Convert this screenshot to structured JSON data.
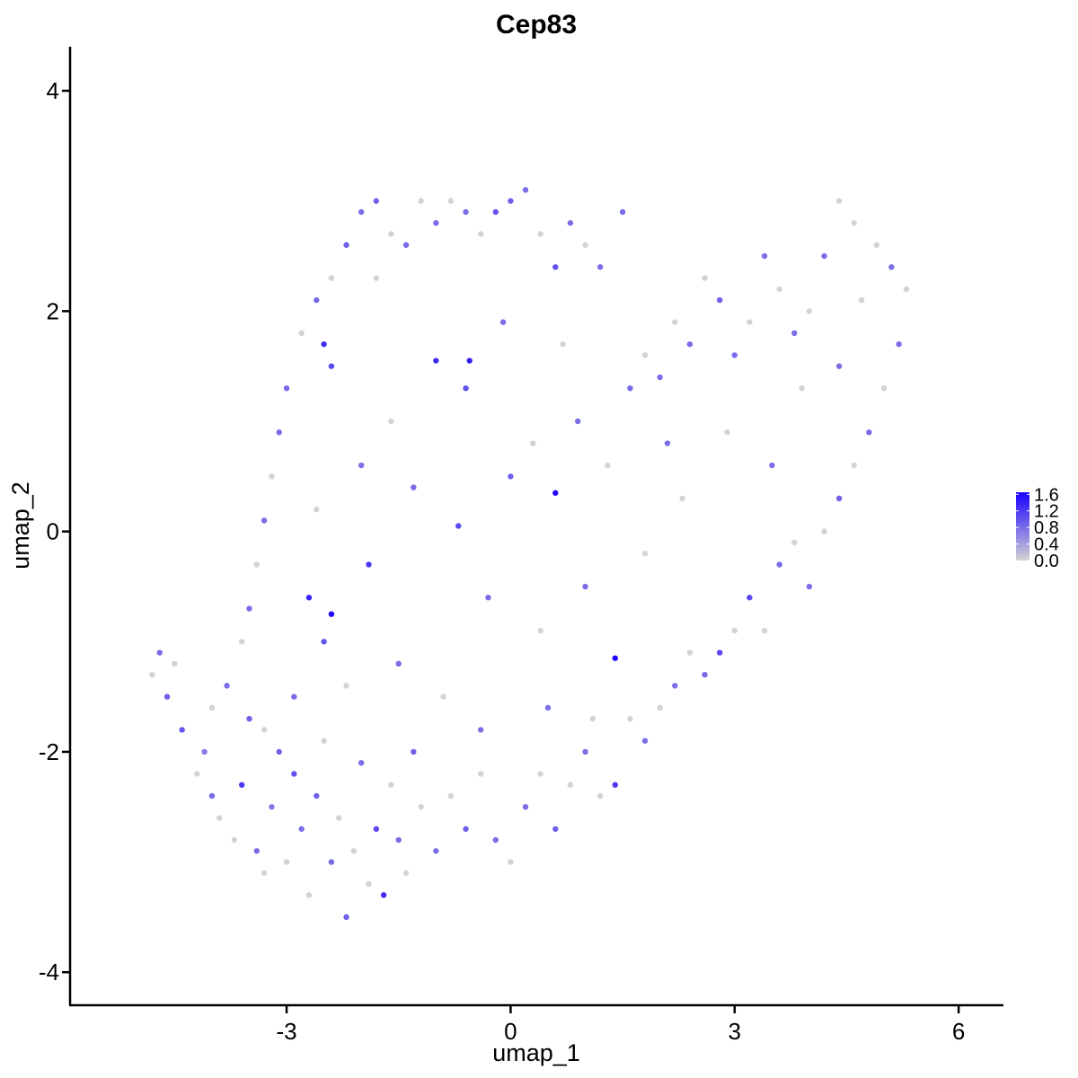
{
  "chart_data": {
    "type": "scatter",
    "title": "Cep83",
    "xlabel": "umap_1",
    "ylabel": "umap_2",
    "xlim": [
      -5.9,
      6.6
    ],
    "ylim": [
      -4.3,
      4.4
    ],
    "x_ticks": [
      {
        "value": -3,
        "label": "-3"
      },
      {
        "value": 0,
        "label": "0"
      },
      {
        "value": 3,
        "label": "3"
      },
      {
        "value": 6,
        "label": "6"
      }
    ],
    "y_ticks": [
      {
        "value": -4,
        "label": "-4"
      },
      {
        "value": -2,
        "label": "-2"
      },
      {
        "value": 0,
        "label": "0"
      },
      {
        "value": 2,
        "label": "2"
      },
      {
        "value": 4,
        "label": "4"
      }
    ],
    "grid": false,
    "colors": {
      "low": "#d3d3d3",
      "high": "#1a00ff"
    },
    "legend": {
      "position": "right",
      "min": 0,
      "max": 1.65,
      "ticks": [
        {
          "value": 0.0,
          "label": "0.0"
        },
        {
          "value": 0.4,
          "label": "0.4"
        },
        {
          "value": 0.8,
          "label": "0.8"
        },
        {
          "value": 1.2,
          "label": "1.2"
        },
        {
          "value": 1.6,
          "label": "1.6"
        }
      ]
    },
    "points": [
      {
        "x": -4.8,
        "y": -1.3,
        "v": 0
      },
      {
        "x": -4.7,
        "y": -1.1,
        "v": 0.8
      },
      {
        "x": -4.6,
        "y": -1.5,
        "v": 0.9
      },
      {
        "x": -4.5,
        "y": -1.2,
        "v": 0
      },
      {
        "x": -4.4,
        "y": -1.8,
        "v": 1.0
      },
      {
        "x": -4.2,
        "y": -2.2,
        "v": 0
      },
      {
        "x": -4.1,
        "y": -2.0,
        "v": 0.7
      },
      {
        "x": -4.0,
        "y": -1.6,
        "v": 0
      },
      {
        "x": -3.9,
        "y": -2.6,
        "v": 0
      },
      {
        "x": -3.8,
        "y": -1.4,
        "v": 0.8
      },
      {
        "x": -3.7,
        "y": -2.8,
        "v": 0
      },
      {
        "x": -3.6,
        "y": -2.3,
        "v": 1.2
      },
      {
        "x": -3.5,
        "y": -1.7,
        "v": 0.9
      },
      {
        "x": -3.4,
        "y": -2.9,
        "v": 0.8
      },
      {
        "x": -3.3,
        "y": -3.1,
        "v": 0
      },
      {
        "x": -3.2,
        "y": -2.5,
        "v": 0.7
      },
      {
        "x": -3.1,
        "y": -2.0,
        "v": 0.9
      },
      {
        "x": -3.0,
        "y": -3.0,
        "v": 0
      },
      {
        "x": -2.9,
        "y": -2.2,
        "v": 1.0
      },
      {
        "x": -2.8,
        "y": -2.7,
        "v": 0.8
      },
      {
        "x": -2.7,
        "y": -3.3,
        "v": 0
      },
      {
        "x": -2.6,
        "y": -2.4,
        "v": 0.9
      },
      {
        "x": -2.5,
        "y": -1.9,
        "v": 0
      },
      {
        "x": -2.4,
        "y": -3.0,
        "v": 0.8
      },
      {
        "x": -2.3,
        "y": -2.6,
        "v": 0
      },
      {
        "x": -2.2,
        "y": -3.5,
        "v": 0.9
      },
      {
        "x": -2.1,
        "y": -2.9,
        "v": 0
      },
      {
        "x": -2.0,
        "y": -2.1,
        "v": 0.8
      },
      {
        "x": -1.9,
        "y": -3.2,
        "v": 0
      },
      {
        "x": -1.8,
        "y": -2.7,
        "v": 1.1
      },
      {
        "x": -1.7,
        "y": -3.3,
        "v": 1.3
      },
      {
        "x": -1.6,
        "y": -2.3,
        "v": 0
      },
      {
        "x": -1.5,
        "y": -2.8,
        "v": 0.8
      },
      {
        "x": -1.4,
        "y": -3.1,
        "v": 0
      },
      {
        "x": -1.3,
        "y": -2.0,
        "v": 0.9
      },
      {
        "x": -1.2,
        "y": -2.5,
        "v": 0
      },
      {
        "x": -1.0,
        "y": -2.9,
        "v": 0.8
      },
      {
        "x": -0.8,
        "y": -2.4,
        "v": 0
      },
      {
        "x": -0.6,
        "y": -2.7,
        "v": 0.9
      },
      {
        "x": -0.4,
        "y": -2.2,
        "v": 0
      },
      {
        "x": -0.2,
        "y": -2.8,
        "v": 0.8
      },
      {
        "x": 0.0,
        "y": -3.0,
        "v": 0
      },
      {
        "x": 0.2,
        "y": -2.5,
        "v": 0.8
      },
      {
        "x": 0.4,
        "y": -2.2,
        "v": 0
      },
      {
        "x": 0.6,
        "y": -2.7,
        "v": 0.9
      },
      {
        "x": 0.8,
        "y": -2.3,
        "v": 0
      },
      {
        "x": 1.0,
        "y": -2.0,
        "v": 0.8
      },
      {
        "x": 1.2,
        "y": -2.4,
        "v": 0
      },
      {
        "x": 1.4,
        "y": -2.3,
        "v": 1.2
      },
      {
        "x": 1.6,
        "y": -1.7,
        "v": 0
      },
      {
        "x": 1.8,
        "y": -1.9,
        "v": 0.8
      },
      {
        "x": 2.0,
        "y": -1.6,
        "v": 0
      },
      {
        "x": 2.2,
        "y": -1.4,
        "v": 0.8
      },
      {
        "x": 2.4,
        "y": -1.1,
        "v": 0
      },
      {
        "x": 2.6,
        "y": -1.3,
        "v": 0.8
      },
      {
        "x": 2.8,
        "y": -1.1,
        "v": 1.1
      },
      {
        "x": 3.0,
        "y": -0.9,
        "v": 0
      },
      {
        "x": 3.2,
        "y": -0.6,
        "v": 1.1
      },
      {
        "x": 3.4,
        "y": -0.9,
        "v": 0
      },
      {
        "x": 3.6,
        "y": -0.3,
        "v": 0.8
      },
      {
        "x": 3.8,
        "y": -0.1,
        "v": 0
      },
      {
        "x": 4.0,
        "y": -0.5,
        "v": 0.8
      },
      {
        "x": 4.2,
        "y": 0.0,
        "v": 0
      },
      {
        "x": 4.4,
        "y": 0.3,
        "v": 0.9
      },
      {
        "x": 4.6,
        "y": 0.6,
        "v": 0
      },
      {
        "x": 4.8,
        "y": 0.9,
        "v": 0.8
      },
      {
        "x": 5.0,
        "y": 1.3,
        "v": 0
      },
      {
        "x": 5.2,
        "y": 1.7,
        "v": 0.8
      },
      {
        "x": 5.3,
        "y": 2.2,
        "v": 0
      },
      {
        "x": 5.1,
        "y": 2.4,
        "v": 0.8
      },
      {
        "x": 4.9,
        "y": 2.6,
        "v": 0
      },
      {
        "x": 4.6,
        "y": 2.8,
        "v": 0
      },
      {
        "x": 4.4,
        "y": 3.0,
        "v": 0
      },
      {
        "x": 4.2,
        "y": 2.5,
        "v": 0.8
      },
      {
        "x": 4.0,
        "y": 2.0,
        "v": 0
      },
      {
        "x": 3.8,
        "y": 1.8,
        "v": 0.8
      },
      {
        "x": 3.6,
        "y": 2.2,
        "v": 0
      },
      {
        "x": 3.4,
        "y": 2.5,
        "v": 0.8
      },
      {
        "x": 3.2,
        "y": 1.9,
        "v": 0
      },
      {
        "x": 3.0,
        "y": 1.6,
        "v": 0.8
      },
      {
        "x": 2.8,
        "y": 2.1,
        "v": 0.9
      },
      {
        "x": 2.6,
        "y": 2.3,
        "v": 0
      },
      {
        "x": 2.4,
        "y": 1.7,
        "v": 0.8
      },
      {
        "x": 2.2,
        "y": 1.9,
        "v": 0
      },
      {
        "x": 2.0,
        "y": 1.4,
        "v": 0.8
      },
      {
        "x": 1.8,
        "y": 1.6,
        "v": 0
      },
      {
        "x": 1.6,
        "y": 1.3,
        "v": 0.8
      },
      {
        "x": 1.5,
        "y": 2.9,
        "v": 0.8
      },
      {
        "x": 1.2,
        "y": 2.4,
        "v": 0.8
      },
      {
        "x": 1.0,
        "y": 2.6,
        "v": 0
      },
      {
        "x": 0.8,
        "y": 2.8,
        "v": 0.8
      },
      {
        "x": 0.6,
        "y": 2.4,
        "v": 1.0
      },
      {
        "x": 0.4,
        "y": 2.7,
        "v": 0
      },
      {
        "x": 0.2,
        "y": 3.1,
        "v": 0.8
      },
      {
        "x": 0.0,
        "y": 3.0,
        "v": 0.9
      },
      {
        "x": -0.2,
        "y": 2.9,
        "v": 1.0
      },
      {
        "x": -0.4,
        "y": 2.7,
        "v": 0
      },
      {
        "x": -0.6,
        "y": 2.9,
        "v": 0.8
      },
      {
        "x": -0.8,
        "y": 3.0,
        "v": 0
      },
      {
        "x": -1.0,
        "y": 2.8,
        "v": 0.8
      },
      {
        "x": -1.2,
        "y": 3.0,
        "v": 0
      },
      {
        "x": -1.4,
        "y": 2.6,
        "v": 0.8
      },
      {
        "x": -1.6,
        "y": 2.7,
        "v": 0
      },
      {
        "x": -1.8,
        "y": 3.0,
        "v": 0.9
      },
      {
        "x": -2.0,
        "y": 2.9,
        "v": 0.8
      },
      {
        "x": -2.2,
        "y": 2.6,
        "v": 0.9
      },
      {
        "x": -2.4,
        "y": 2.3,
        "v": 0
      },
      {
        "x": -2.6,
        "y": 2.1,
        "v": 0.8
      },
      {
        "x": -2.8,
        "y": 1.8,
        "v": 0
      },
      {
        "x": -3.0,
        "y": 1.3,
        "v": 0.8
      },
      {
        "x": -3.1,
        "y": 0.9,
        "v": 0.8
      },
      {
        "x": -3.2,
        "y": 0.5,
        "v": 0
      },
      {
        "x": -3.3,
        "y": 0.1,
        "v": 0.8
      },
      {
        "x": -3.4,
        "y": -0.3,
        "v": 0
      },
      {
        "x": -3.5,
        "y": -0.7,
        "v": 0.8
      },
      {
        "x": -3.6,
        "y": -1.0,
        "v": 0
      },
      {
        "x": -2.5,
        "y": 1.7,
        "v": 1.3
      },
      {
        "x": -2.4,
        "y": 1.5,
        "v": 1.1
      },
      {
        "x": -1.0,
        "y": 1.55,
        "v": 1.3
      },
      {
        "x": -0.55,
        "y": 1.55,
        "v": 1.4
      },
      {
        "x": -0.6,
        "y": 1.3,
        "v": 1.0
      },
      {
        "x": -2.7,
        "y": -0.6,
        "v": 1.4
      },
      {
        "x": -2.4,
        "y": -0.75,
        "v": 1.6
      },
      {
        "x": -2.5,
        "y": -1.0,
        "v": 1.0
      },
      {
        "x": 0.6,
        "y": 0.35,
        "v": 1.6
      },
      {
        "x": 1.4,
        "y": -1.15,
        "v": 1.6
      },
      {
        "x": -1.9,
        "y": -0.3,
        "v": 1.2
      },
      {
        "x": -0.7,
        "y": 0.05,
        "v": 1.1
      },
      {
        "x": 0.0,
        "y": 0.5,
        "v": 0.9
      },
      {
        "x": 0.3,
        "y": 0.8,
        "v": 0
      },
      {
        "x": 0.9,
        "y": 1.0,
        "v": 0.8
      },
      {
        "x": 1.3,
        "y": 0.6,
        "v": 0
      },
      {
        "x": -0.3,
        "y": -0.6,
        "v": 0.8
      },
      {
        "x": 0.4,
        "y": -0.9,
        "v": 0
      },
      {
        "x": 1.0,
        "y": -0.5,
        "v": 0.8
      },
      {
        "x": 1.8,
        "y": -0.2,
        "v": 0
      },
      {
        "x": 2.3,
        "y": 0.3,
        "v": 0
      },
      {
        "x": -1.3,
        "y": 0.4,
        "v": 0.8
      },
      {
        "x": -1.6,
        "y": 1.0,
        "v": 0
      },
      {
        "x": -2.0,
        "y": 0.6,
        "v": 0.8
      },
      {
        "x": -2.2,
        "y": -1.4,
        "v": 0
      },
      {
        "x": -1.5,
        "y": -1.2,
        "v": 0.8
      },
      {
        "x": -0.9,
        "y": -1.5,
        "v": 0
      },
      {
        "x": -0.4,
        "y": -1.8,
        "v": 0.8
      },
      {
        "x": 0.5,
        "y": -1.6,
        "v": 0.8
      },
      {
        "x": 1.1,
        "y": -1.7,
        "v": 0
      },
      {
        "x": 3.5,
        "y": 0.6,
        "v": 0.8
      },
      {
        "x": 3.9,
        "y": 1.3,
        "v": 0
      },
      {
        "x": 4.4,
        "y": 1.5,
        "v": 0.8
      },
      {
        "x": 4.7,
        "y": 2.1,
        "v": 0
      },
      {
        "x": 2.9,
        "y": 0.9,
        "v": 0
      },
      {
        "x": 2.1,
        "y": 0.8,
        "v": 0.8
      },
      {
        "x": -2.9,
        "y": -1.5,
        "v": 0.8
      },
      {
        "x": -3.3,
        "y": -1.8,
        "v": 0
      },
      {
        "x": -4.0,
        "y": -2.4,
        "v": 0.8
      },
      {
        "x": -2.6,
        "y": 0.2,
        "v": 0
      },
      {
        "x": -0.1,
        "y": 1.9,
        "v": 0.8
      },
      {
        "x": 0.7,
        "y": 1.7,
        "v": 0
      },
      {
        "x": -1.8,
        "y": 2.3,
        "v": 0
      }
    ]
  }
}
